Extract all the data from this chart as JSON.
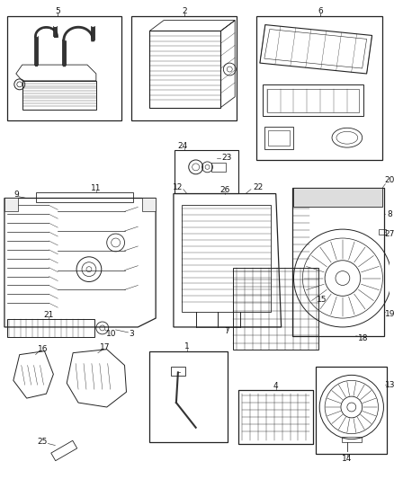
{
  "bg_color": "#ffffff",
  "lc": "#222222",
  "figsize": [
    4.38,
    5.33
  ],
  "dpi": 100,
  "fs": 6.5
}
